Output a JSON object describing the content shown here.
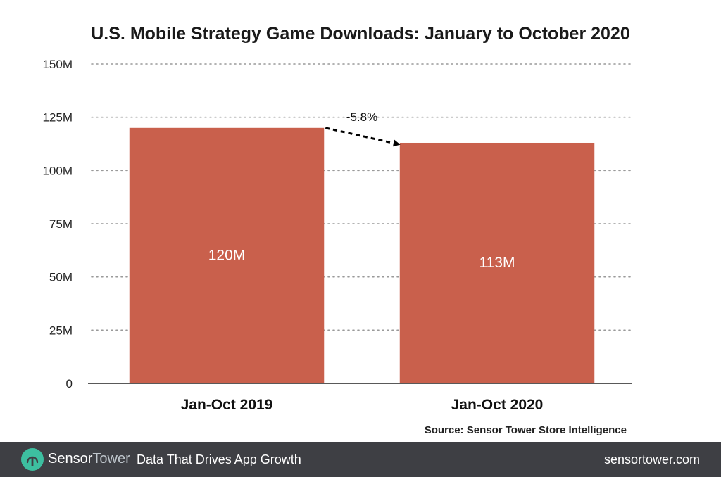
{
  "chart_data": {
    "type": "bar",
    "title": "U.S. Mobile Strategy Game Downloads: January to October 2020",
    "categories": [
      "Jan-Oct 2019",
      "Jan-Oct 2020"
    ],
    "values": [
      120,
      113
    ],
    "value_labels": [
      "120M",
      "113M"
    ],
    "ylim": [
      0,
      150
    ],
    "yticks": [
      0,
      25,
      50,
      75,
      100,
      125,
      150
    ],
    "ytick_labels": [
      "0",
      "25M",
      "50M",
      "75M",
      "100M",
      "125M",
      "150M"
    ],
    "xlabel": "",
    "ylabel": "",
    "grid": "dotted-horizontal",
    "bar_color": "#c9604c",
    "annotation": {
      "text": "-5.8%",
      "from_category": 0,
      "to_category": 1
    }
  },
  "source": "Source: Sensor Tower Store Intelligence",
  "footer": {
    "brand_part1": "Sensor",
    "brand_part2": "Tower",
    "tagline": "Data That Drives App Growth",
    "site": "sensortower.com",
    "logo_icon": "sensortower-logo-icon",
    "logo_color": "#3dbfa0",
    "background": "#3e3f44"
  }
}
